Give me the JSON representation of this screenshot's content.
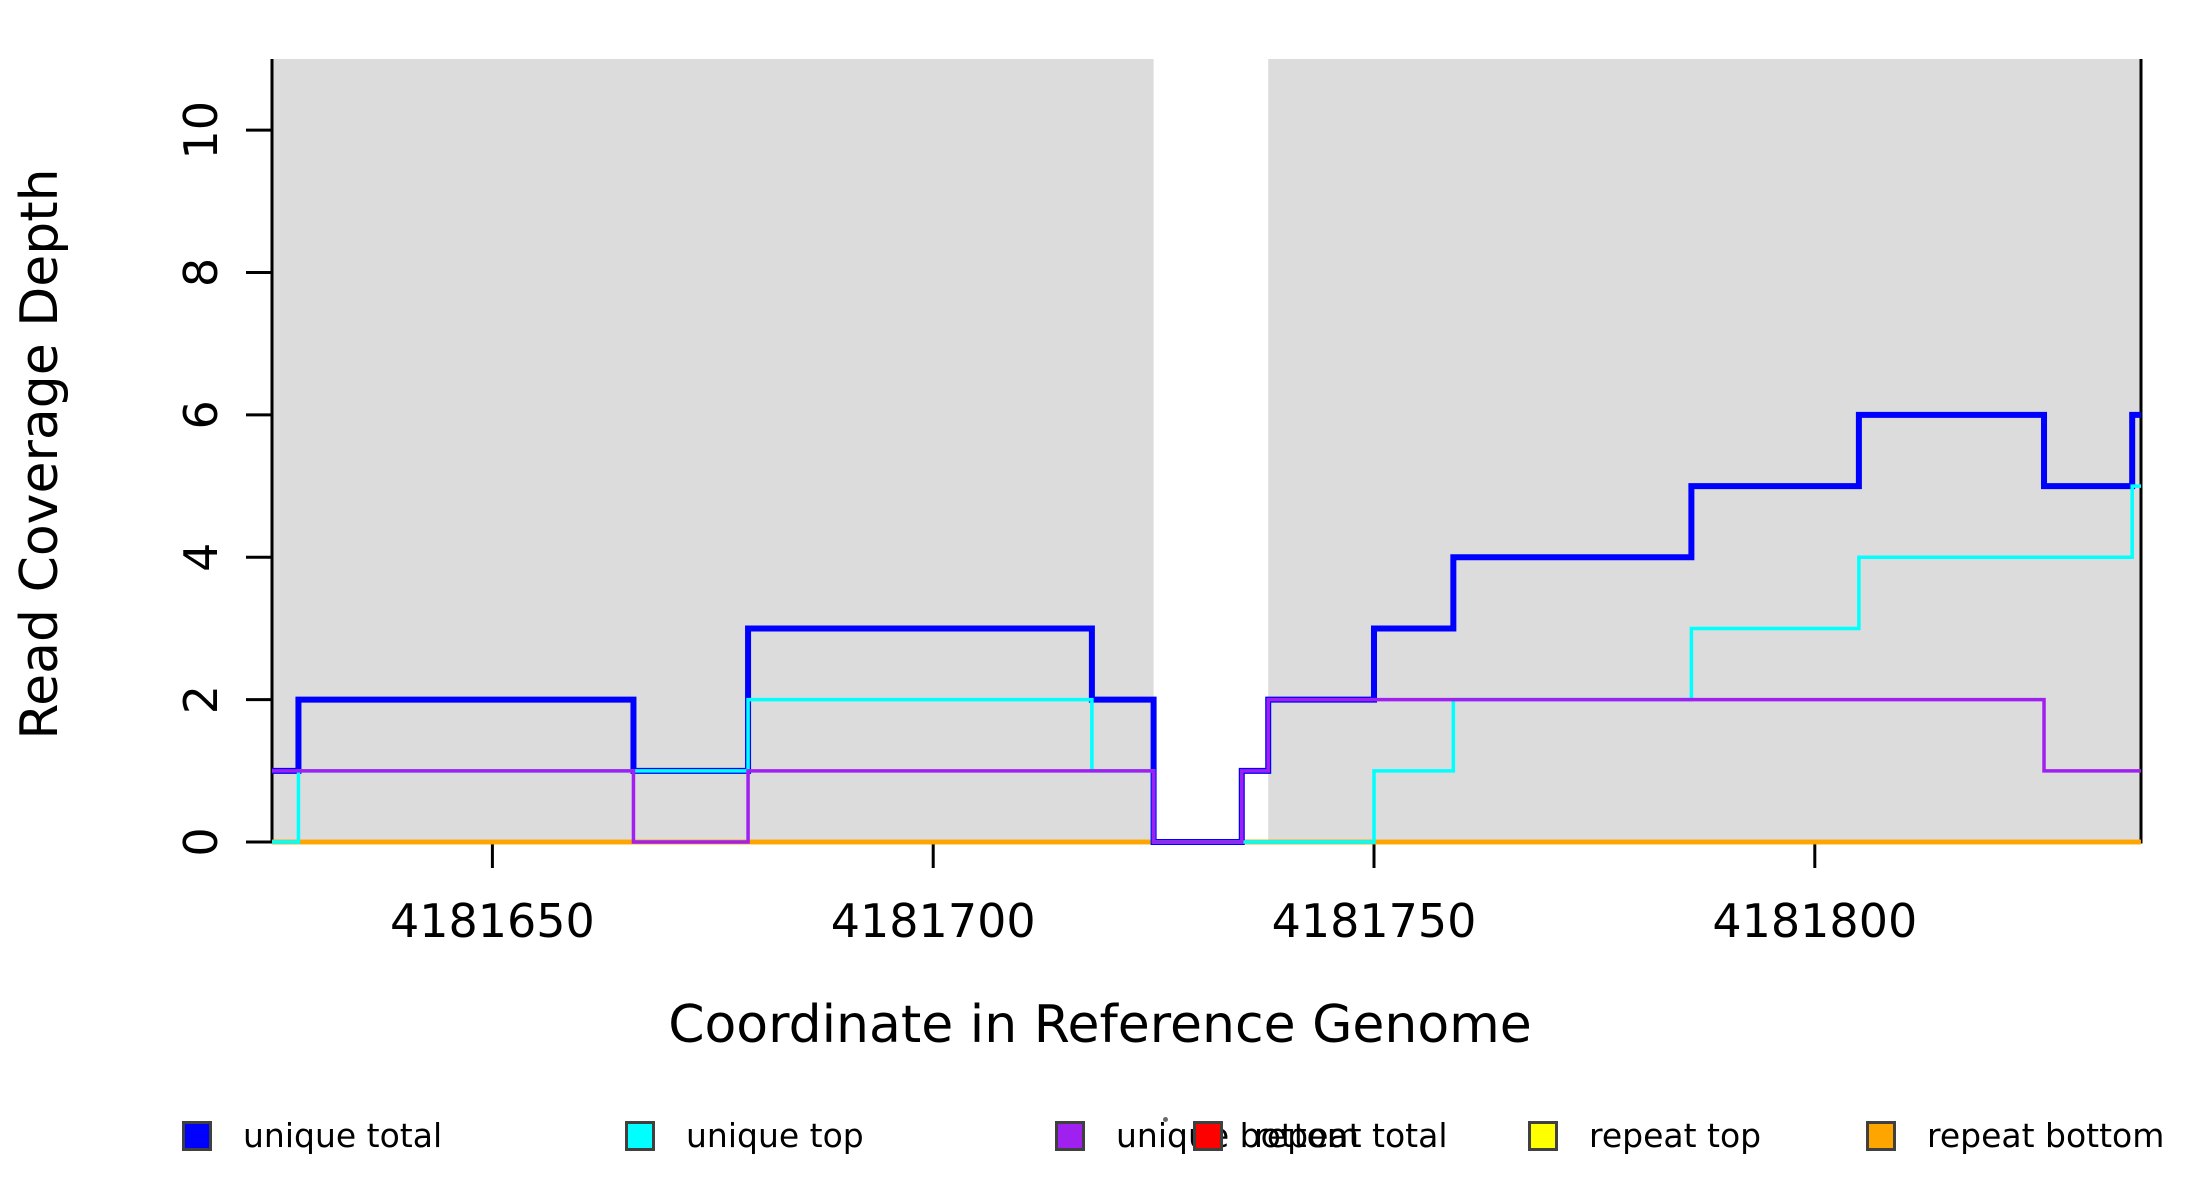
{
  "chart_data": {
    "type": "line",
    "subtype": "step-coverage",
    "title": "",
    "xlabel": "Coordinate in Reference Genome",
    "ylabel": "Read Coverage Depth",
    "xlim": [
      4181625,
      4181837
    ],
    "ylim": [
      0,
      11
    ],
    "xticks": [
      4181650,
      4181700,
      4181750,
      4181800
    ],
    "yticks": [
      0,
      2,
      4,
      6,
      8,
      10
    ],
    "grid": false,
    "legend_position": "bottom",
    "shade_color": "#dcdcdc",
    "shaded_regions": [
      {
        "from": 4181625,
        "to": 4181725
      },
      {
        "from": 4181738,
        "to": 4181837
      }
    ],
    "gap_region": {
      "from": 4181725,
      "to": 4181738
    },
    "series": [
      {
        "name": "unique total",
        "color": "#0000ff",
        "linewidth": 6,
        "start_value": 1,
        "steps": [
          [
            4181628,
            2
          ],
          [
            4181666,
            1
          ],
          [
            4181679,
            3
          ],
          [
            4181718,
            2
          ],
          [
            4181725,
            0
          ],
          [
            4181735,
            1
          ],
          [
            4181738,
            2
          ],
          [
            4181750,
            3
          ],
          [
            4181759,
            4
          ],
          [
            4181786,
            5
          ],
          [
            4181805,
            6
          ],
          [
            4181826,
            5
          ],
          [
            4181836,
            6
          ]
        ]
      },
      {
        "name": "unique top",
        "color": "#00ffff",
        "linewidth": 3.5,
        "start_value": 0,
        "steps": [
          [
            4181628,
            1
          ],
          [
            4181679,
            2
          ],
          [
            4181718,
            1
          ],
          [
            4181725,
            0
          ],
          [
            4181750,
            1
          ],
          [
            4181759,
            2
          ],
          [
            4181786,
            3
          ],
          [
            4181805,
            4
          ],
          [
            4181836,
            5
          ]
        ]
      },
      {
        "name": "unique bottom",
        "color": "#a020f0",
        "linewidth": 3.5,
        "start_value": 1,
        "steps": [
          [
            4181666,
            0
          ],
          [
            4181679,
            1
          ],
          [
            4181725,
            0
          ],
          [
            4181735,
            1
          ],
          [
            4181738,
            2
          ],
          [
            4181826,
            1
          ]
        ]
      },
      {
        "name": "repeat total",
        "color": "#ff0000",
        "linewidth": 4.5,
        "start_value": 0,
        "steps": []
      },
      {
        "name": "repeat top",
        "color": "#ffff00",
        "linewidth": 4.5,
        "start_value": 0,
        "steps": []
      },
      {
        "name": "repeat bottom",
        "color": "#ffa500",
        "linewidth": 4.5,
        "start_value": 0,
        "steps": []
      }
    ],
    "draw_order": [
      3,
      4,
      5,
      0,
      1,
      2
    ]
  }
}
